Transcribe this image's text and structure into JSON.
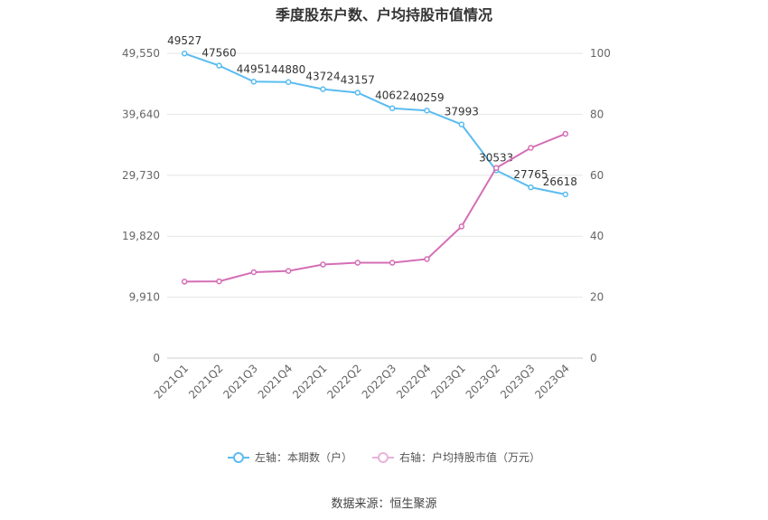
{
  "chart_data": {
    "type": "line",
    "title": "季度股东户数、户均持股市值情况",
    "categories": [
      "2021Q1",
      "2021Q2",
      "2021Q3",
      "2021Q4",
      "2022Q1",
      "2022Q2",
      "2022Q3",
      "2022Q4",
      "2023Q1",
      "2023Q2",
      "2023Q3",
      "2023Q4"
    ],
    "left_axis": {
      "ticks": [
        "0",
        "9,910",
        "19,820",
        "29,730",
        "39,640",
        "49,550"
      ],
      "ylim": [
        0,
        49550
      ]
    },
    "right_axis": {
      "ticks": [
        "0",
        "20",
        "40",
        "60",
        "80",
        "100"
      ],
      "ylim": [
        0,
        100
      ]
    },
    "series": [
      {
        "name": "左轴：本期数（户）",
        "axis": "left",
        "color": "#5bbcf0",
        "values": [
          49527,
          47560,
          44951,
          44880,
          43724,
          43157,
          40622,
          40259,
          37993,
          30533,
          27765,
          26618
        ],
        "labels": [
          "49527",
          "47560",
          "44951",
          "44880",
          "43724",
          "43157",
          "40622",
          "40259",
          "37993",
          "30533",
          "27765",
          "26618"
        ]
      },
      {
        "name": "右轴：户均持股市值（万元）",
        "axis": "right",
        "color": "#d46eb5",
        "values": [
          25.1,
          25.2,
          28.2,
          28.6,
          30.7,
          31.3,
          31.3,
          32.5,
          43.2,
          62.4,
          69.0,
          73.6
        ]
      }
    ],
    "grid": true,
    "legend_position": "bottom"
  },
  "source": "数据来源：恒生聚源"
}
